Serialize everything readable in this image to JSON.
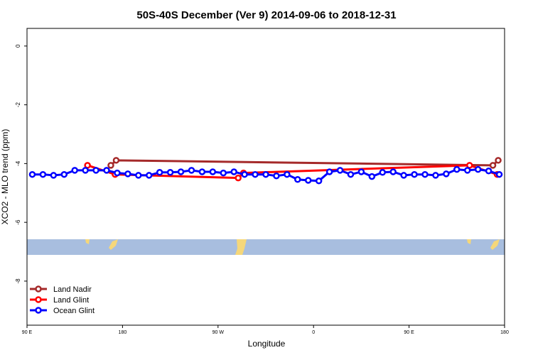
{
  "chart_data": {
    "type": "line",
    "title": "50S-40S December (Ver 9)   2014-09-06 to 2018-12-31",
    "x_label": "Longitude",
    "y_label": "XCO2 - MLO trend (ppm)",
    "xlim": [
      90,
      540
    ],
    "xticks": [
      {
        "value": 90,
        "label": "90 E"
      },
      {
        "value": 180,
        "label": "180"
      },
      {
        "value": 270,
        "label": "90 W"
      },
      {
        "value": 360,
        "label": "0"
      },
      {
        "value": 450,
        "label": "90 E"
      },
      {
        "value": 540,
        "label": "180"
      }
    ],
    "ylim": [
      -9.5,
      0.6
    ],
    "yticks": [
      0,
      -2,
      -4,
      -6,
      -8
    ],
    "legend": "bottom-left",
    "series": [
      {
        "name": "Land Nadir",
        "color": "#a52a2a",
        "x": [
          169,
          174,
          529,
          534
        ],
        "values": [
          -4.06,
          -3.89,
          -4.06,
          -3.89
        ]
      },
      {
        "name": "Land Glint",
        "color": "#ff0000",
        "x": [
          147,
          173,
          289,
          294,
          507,
          533
        ],
        "values": [
          -4.06,
          -4.37,
          -4.49,
          -4.32,
          -4.06,
          -4.37
        ]
      },
      {
        "name": "Ocean Glint",
        "color": "#0000ff",
        "x": [
          95,
          105,
          115,
          125,
          135,
          145,
          155,
          165,
          175,
          185,
          195,
          205,
          215,
          225,
          235,
          245,
          255,
          265,
          275,
          285,
          295,
          305,
          315,
          325,
          335,
          345,
          355,
          365,
          375,
          385,
          395,
          405,
          415,
          425,
          435,
          445,
          455,
          465,
          475,
          485,
          495,
          505,
          515,
          525,
          535
        ],
        "values": [
          -4.37,
          -4.37,
          -4.4,
          -4.37,
          -4.23,
          -4.23,
          -4.23,
          -4.23,
          -4.32,
          -4.35,
          -4.4,
          -4.4,
          -4.3,
          -4.3,
          -4.28,
          -4.23,
          -4.28,
          -4.28,
          -4.32,
          -4.28,
          -4.37,
          -4.37,
          -4.37,
          -4.42,
          -4.37,
          -4.54,
          -4.57,
          -4.59,
          -4.28,
          -4.23,
          -4.37,
          -4.28,
          -4.44,
          -4.3,
          -4.28,
          -4.4,
          -4.37,
          -4.37,
          -4.4,
          -4.35,
          -4.2,
          -4.23,
          -4.2,
          -4.25,
          -4.37
        ]
      }
    ]
  }
}
